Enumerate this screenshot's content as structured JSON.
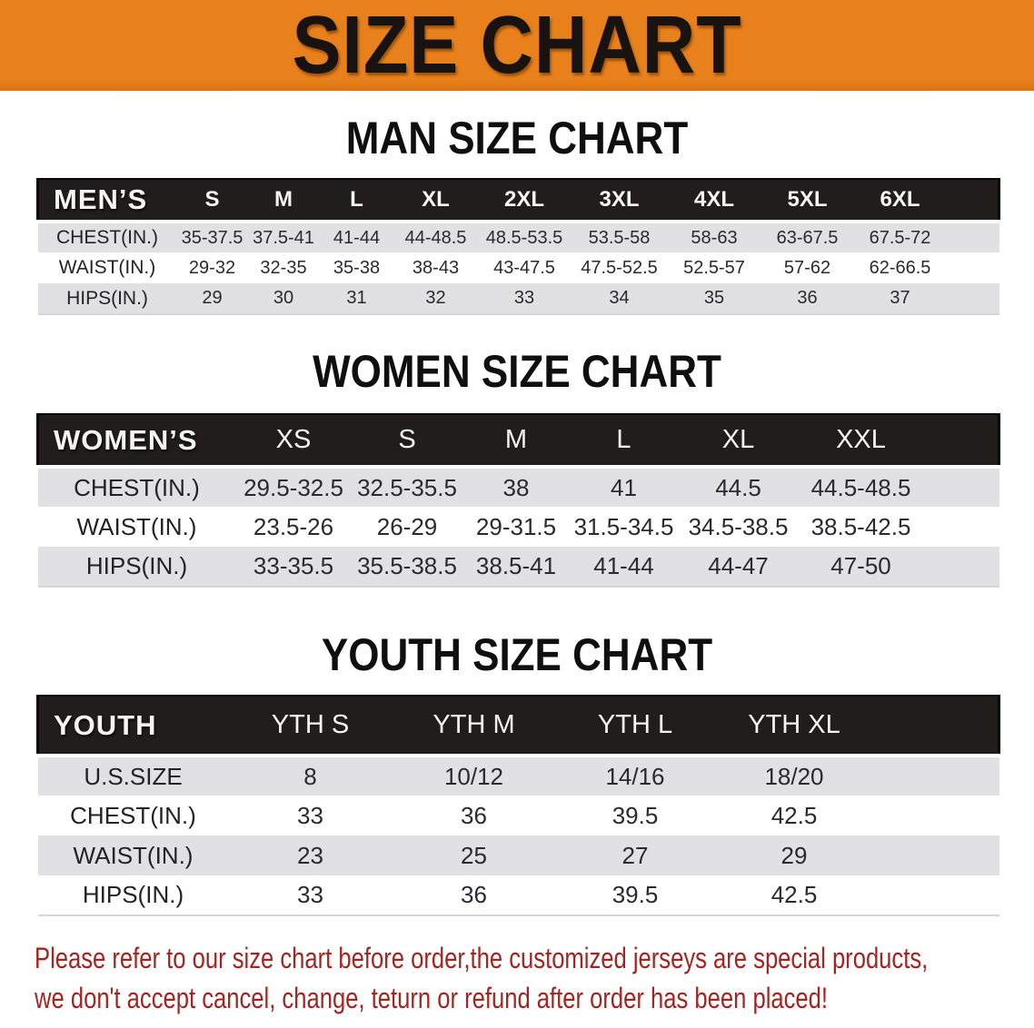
{
  "banner": {
    "title": "SIZE CHART"
  },
  "colors": {
    "banner_bg": "#e8801b",
    "header_bar_bg": "#211d1d",
    "row_stripe": "#e1e1e4",
    "footer_text": "#a32522"
  },
  "sections": [
    {
      "id": "men",
      "heading": "MAN SIZE CHART",
      "table": {
        "header_label": "MEN’S",
        "columns": [
          "S",
          "M",
          "L",
          "XL",
          "2XL",
          "3XL",
          "4XL",
          "5XL",
          "6XL"
        ],
        "rows": [
          {
            "label": "CHEST(IN.)",
            "values": [
              "35-37.5",
              "37.5-41",
              "41-44",
              "44-48.5",
              "48.5-53.5",
              "53.5-58",
              "58-63",
              "63-67.5",
              "67.5-72"
            ]
          },
          {
            "label": "WAIST(IN.)",
            "values": [
              "29-32",
              "32-35",
              "35-38",
              "38-43",
              "43-47.5",
              "47.5-52.5",
              "52.5-57",
              "57-62",
              "62-66.5"
            ]
          },
          {
            "label": "HIPS(IN.)",
            "values": [
              "29",
              "30",
              "31",
              "32",
              "33",
              "34",
              "35",
              "36",
              "37"
            ]
          }
        ]
      }
    },
    {
      "id": "women",
      "heading": "WOMEN SIZE CHART",
      "table": {
        "header_label": "WOMEN’S",
        "columns": [
          "XS",
          "S",
          "M",
          "L",
          "XL",
          "XXL"
        ],
        "rows": [
          {
            "label": "CHEST(IN.)",
            "values": [
              "29.5-32.5",
              "32.5-35.5",
              "38",
              "41",
              "44.5",
              "44.5-48.5"
            ]
          },
          {
            "label": "WAIST(IN.)",
            "values": [
              "23.5-26",
              "26-29",
              "29-31.5",
              "31.5-34.5",
              "34.5-38.5",
              "38.5-42.5"
            ]
          },
          {
            "label": "HIPS(IN.)",
            "values": [
              "33-35.5",
              "35.5-38.5",
              "38.5-41",
              "41-44",
              "44-47",
              "47-50"
            ]
          }
        ]
      }
    },
    {
      "id": "youth",
      "heading": "YOUTH SIZE CHART",
      "table": {
        "header_label": "YOUTH",
        "columns": [
          "YTH S",
          "YTH M",
          "YTH L",
          "YTH XL"
        ],
        "rows": [
          {
            "label": "U.S.SIZE",
            "values": [
              "8",
              "10/12",
              "14/16",
              "18/20"
            ]
          },
          {
            "label": "CHEST(IN.)",
            "values": [
              "33",
              "36",
              "39.5",
              "42.5"
            ]
          },
          {
            "label": "WAIST(IN.)",
            "values": [
              "23",
              "25",
              "27",
              "29"
            ]
          },
          {
            "label": "HIPS(IN.)",
            "values": [
              "33",
              "36",
              "39.5",
              "42.5"
            ]
          }
        ]
      }
    }
  ],
  "footer": {
    "line1": "Please refer to our size chart before order,the customized jerseys are special products,",
    "line2": "we don't accept cancel, change, teturn or refund after order has been placed!"
  }
}
